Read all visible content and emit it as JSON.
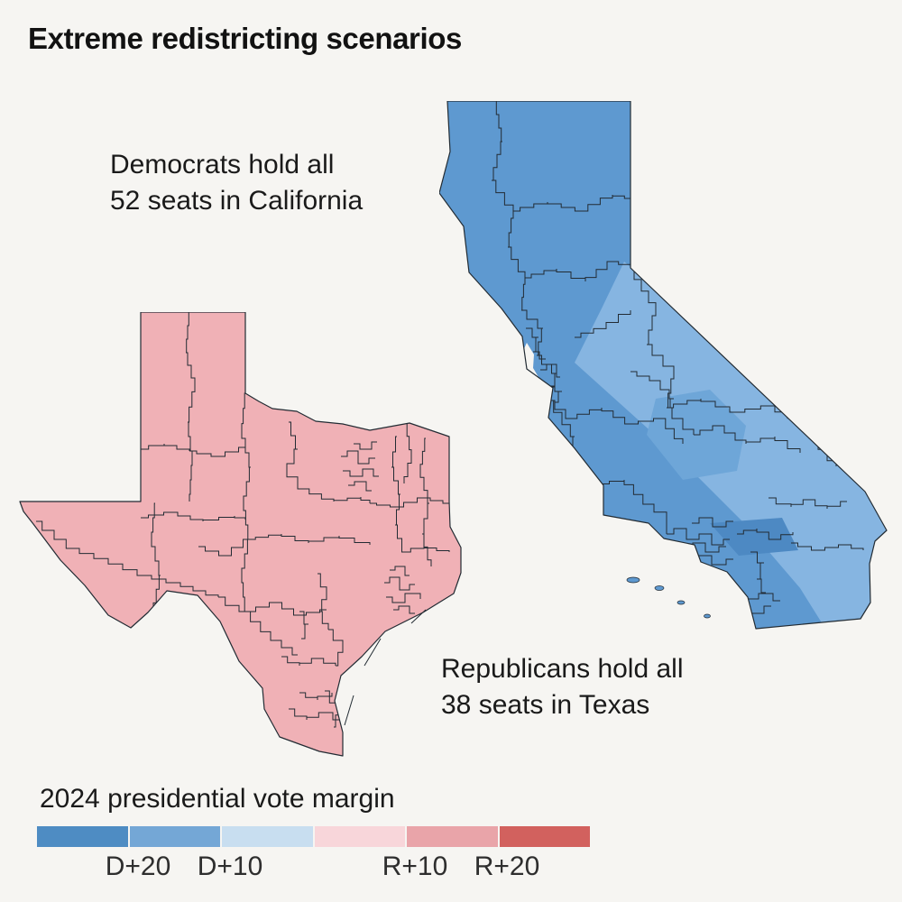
{
  "title": "Extreme redistricting scenarios",
  "california": {
    "annotation_line1": "Democrats hold all",
    "annotation_line2": "52 seats in California"
  },
  "texas": {
    "annotation_line1": "Republicans hold all",
    "annotation_line2": "38 seats in Texas"
  },
  "legend": {
    "title": "2024 presidential vote margin",
    "labels": [
      "D+20",
      "D+10",
      "R+10",
      "R+20"
    ],
    "swatches": [
      {
        "name": "dem-20-plus",
        "color": "#4e8cc3"
      },
      {
        "name": "dem-10-20",
        "color": "#74a7d6"
      },
      {
        "name": "dem-0-10",
        "color": "#c8def0"
      },
      {
        "name": "rep-0-10",
        "color": "#f8d6da"
      },
      {
        "name": "rep-10-20",
        "color": "#e9a4a9"
      },
      {
        "name": "rep-20-plus",
        "color": "#d2615e"
      }
    ]
  },
  "colors": {
    "background": "#f6f5f2",
    "district_line": "#222b33",
    "ca_base": "#5e99d0",
    "ca_light": "#86b5e1",
    "ca_mid": "#6ea6d8",
    "ca_dark": "#4d89c3",
    "tx_base": "#f0b1b6"
  },
  "chart_data": {
    "type": "choropleth-map",
    "title": "Extreme redistricting scenarios",
    "legend_title": "2024 presidential vote margin",
    "legend_bins": [
      "D+20",
      "D+10",
      "R+10",
      "R+20"
    ],
    "states": [
      {
        "state": "California",
        "annotation": "Democrats hold all 52 seats in California",
        "party": "Democrats",
        "seats": 52
      },
      {
        "state": "Texas",
        "annotation": "Republicans hold all 38 seats in Texas",
        "party": "Republicans",
        "seats": 38
      }
    ]
  }
}
